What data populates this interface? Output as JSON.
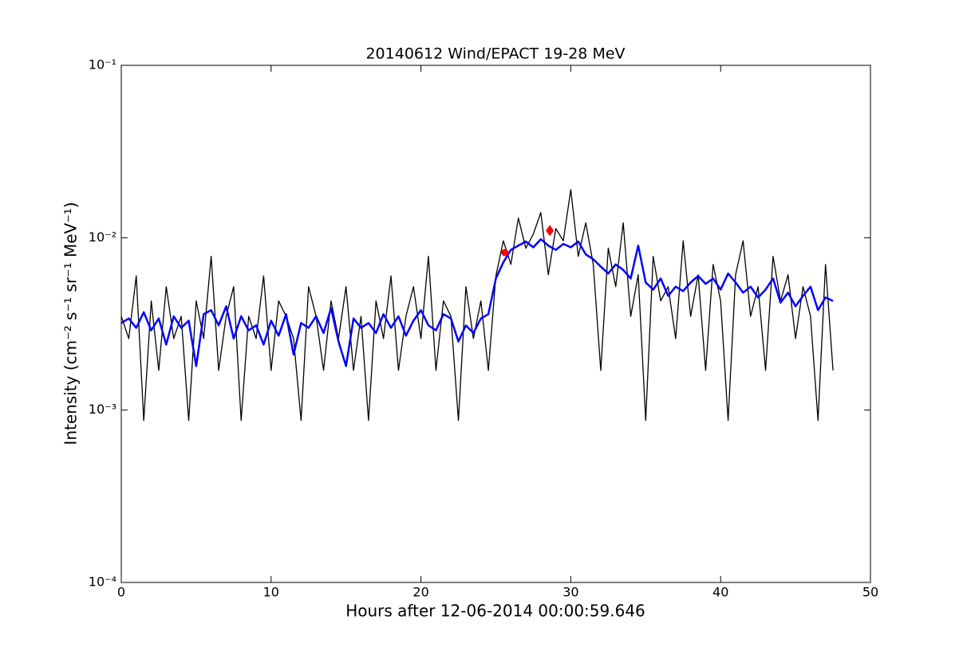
{
  "chart_data": {
    "type": "line",
    "title": "20140612 Wind/EPACT 19-28 MeV",
    "x_label": "Hours after 12-06-2014 00:00:59.646",
    "y_label": "Intensity (cm⁻² s⁻¹ sr⁻¹ MeV⁻¹)",
    "log_y": true,
    "xlim": [
      0,
      50
    ],
    "xticks": [
      0,
      10,
      20,
      30,
      40,
      50
    ],
    "ylim": [
      0.0001,
      0.1
    ],
    "yticks": [
      {
        "value": 0.0001,
        "label": "10⁻⁴"
      },
      {
        "value": 0.001,
        "label": "10⁻³"
      },
      {
        "value": 0.01,
        "label": "10⁻²"
      },
      {
        "value": 0.1,
        "label": "10⁻¹"
      }
    ],
    "x": [
      0,
      0.5,
      1,
      1.5,
      2,
      2.5,
      3,
      3.5,
      4,
      4.5,
      5,
      5.5,
      6,
      6.5,
      7,
      7.5,
      8,
      8.5,
      9,
      9.5,
      10,
      10.5,
      11,
      11.5,
      12,
      12.5,
      13,
      13.5,
      14,
      14.5,
      15,
      15.5,
      16,
      16.5,
      17,
      17.5,
      18,
      18.5,
      19,
      19.5,
      20,
      20.5,
      21,
      21.5,
      22,
      22.5,
      23,
      23.5,
      24,
      24.5,
      25,
      25.5,
      26,
      26.5,
      27,
      27.5,
      28,
      28.5,
      29,
      29.5,
      30,
      30.5,
      31,
      31.5,
      32,
      32.5,
      33,
      33.5,
      34,
      34.5,
      35,
      35.5,
      36,
      36.5,
      37,
      37.5,
      38,
      38.5,
      39,
      39.5,
      40,
      40.5,
      41,
      41.5,
      42,
      42.5,
      43,
      43.5,
      44,
      44.5,
      45,
      45.5,
      46,
      46.5,
      47,
      47.5
    ],
    "series": [
      {
        "color": "#000000",
        "width": 1.3,
        "values": [
          0.0035,
          0.0026,
          0.006,
          0.00087,
          0.0043,
          0.0017,
          0.0052,
          0.0026,
          0.0035,
          0.00087,
          0.0043,
          0.0026,
          0.0078,
          0.0017,
          0.0035,
          0.0052,
          0.00087,
          0.0035,
          0.0026,
          0.006,
          0.0017,
          0.0043,
          0.0035,
          0.0026,
          0.00087,
          0.0052,
          0.0035,
          0.0017,
          0.0043,
          0.0026,
          0.0052,
          0.0017,
          0.0035,
          0.00087,
          0.0043,
          0.0026,
          0.006,
          0.0017,
          0.0035,
          0.0052,
          0.0026,
          0.0078,
          0.0017,
          0.0043,
          0.0035,
          0.00087,
          0.0052,
          0.0026,
          0.0043,
          0.0017,
          0.006,
          0.0096,
          0.007,
          0.013,
          0.0087,
          0.0105,
          0.014,
          0.0061,
          0.0113,
          0.0096,
          0.019,
          0.0078,
          0.0122,
          0.007,
          0.0017,
          0.0087,
          0.0052,
          0.0122,
          0.0035,
          0.0061,
          0.00087,
          0.0078,
          0.0043,
          0.0052,
          0.0026,
          0.0096,
          0.0035,
          0.0061,
          0.0017,
          0.007,
          0.0043,
          0.00087,
          0.0061,
          0.0096,
          0.0035,
          0.0052,
          0.0017,
          0.0078,
          0.0043,
          0.0061,
          0.0026,
          0.0052,
          0.0035,
          0.00087,
          0.007,
          0.0017
        ]
      },
      {
        "color": "#0000ff",
        "width": 2.5,
        "values": [
          0.0032,
          0.0034,
          0.003,
          0.0037,
          0.0029,
          0.0034,
          0.0024,
          0.0035,
          0.003,
          0.0033,
          0.0018,
          0.0036,
          0.0038,
          0.0031,
          0.004,
          0.0026,
          0.0035,
          0.0029,
          0.0031,
          0.0024,
          0.0033,
          0.0027,
          0.0036,
          0.0021,
          0.0032,
          0.003,
          0.0035,
          0.0028,
          0.0039,
          0.0025,
          0.0018,
          0.0034,
          0.003,
          0.0032,
          0.0028,
          0.0036,
          0.003,
          0.0035,
          0.0027,
          0.0033,
          0.0038,
          0.0031,
          0.0029,
          0.0036,
          0.0034,
          0.0025,
          0.0031,
          0.0028,
          0.0034,
          0.0036,
          0.0058,
          0.0072,
          0.0085,
          0.009,
          0.0095,
          0.0088,
          0.0098,
          0.009,
          0.0085,
          0.0092,
          0.0088,
          0.0095,
          0.008,
          0.0075,
          0.0068,
          0.0062,
          0.007,
          0.0065,
          0.0058,
          0.009,
          0.0055,
          0.005,
          0.0058,
          0.0046,
          0.0052,
          0.0049,
          0.0055,
          0.006,
          0.0054,
          0.0058,
          0.005,
          0.0062,
          0.0055,
          0.0048,
          0.0052,
          0.0045,
          0.005,
          0.0058,
          0.0042,
          0.0048,
          0.004,
          0.0046,
          0.0052,
          0.0038,
          0.0045,
          0.0043
        ]
      }
    ],
    "points": [
      {
        "x": 25.6,
        "y": 0.0082,
        "color": "#ff0000",
        "marker": "circle"
      },
      {
        "x": 28.6,
        "y": 0.011,
        "color": "#ff0000",
        "marker": "diamond"
      }
    ]
  }
}
